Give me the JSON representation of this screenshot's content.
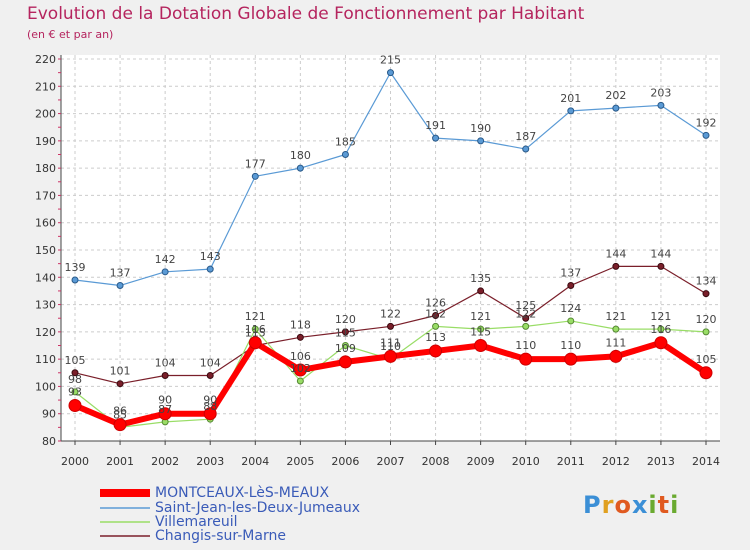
{
  "header": {
    "title": "Evolution de la Dotation Globale de Fonctionnement par Habitant",
    "subtitle": "(en € et par an)"
  },
  "logo": {
    "text": "Proxiti",
    "letters": [
      "P",
      "r",
      "o",
      "x",
      "i",
      "t",
      "i"
    ],
    "colors": [
      "#3b8fd6",
      "#e0a020",
      "#e05a20",
      "#3b8fd6",
      "#6aaa30",
      "#e05a20",
      "#6aaa30"
    ]
  },
  "colors": {
    "background": "#f0f0f0",
    "plot_background": "#ffffff",
    "grid": "#cccccc",
    "accent_title": "#b5245e"
  },
  "chart_data": {
    "type": "line",
    "title": "Evolution de la Dotation Globale de Fonctionnement par Habitant",
    "subtitle": "(en € et par an)",
    "xlabel": "",
    "ylabel": "",
    "x": [
      "2000",
      "2001",
      "2002",
      "2003",
      "2004",
      "2005",
      "2006",
      "2007",
      "2008",
      "2009",
      "2010",
      "2011",
      "2012",
      "2013",
      "2014"
    ],
    "yticks": [
      80,
      90,
      100,
      110,
      120,
      130,
      140,
      150,
      160,
      170,
      180,
      190,
      200,
      210,
      220
    ],
    "ylim": [
      80,
      220
    ],
    "grid": true,
    "legend_position": "bottom-left",
    "series": [
      {
        "name": "MONTCEAUX-LèS-MEAUX",
        "color": "#ff0000",
        "values": [
          93,
          86,
          90,
          90,
          116,
          106,
          109,
          111,
          113,
          115,
          110,
          110,
          111,
          116,
          105
        ],
        "labels": [
          "93",
          "86",
          "90",
          "90",
          "116",
          "106",
          "109",
          "111",
          "113",
          "115",
          "110",
          "110",
          "111",
          "116",
          "105"
        ]
      },
      {
        "name": "Saint-Jean-les-Deux-Jumeaux",
        "color": "#5a9ad5",
        "values": [
          139,
          137,
          142,
          143,
          177,
          180,
          185,
          215,
          191,
          190,
          187,
          201,
          202,
          203,
          192
        ],
        "labels": [
          "139",
          "137",
          "142",
          "143",
          "177",
          "180",
          "185",
          "215",
          "191",
          "190",
          "187",
          "201",
          "202",
          "203",
          "192"
        ]
      },
      {
        "name": "Villemareuil",
        "color": "#99dd66",
        "values": [
          98,
          85,
          87,
          88,
          121,
          102,
          115,
          110,
          122,
          121,
          122,
          124,
          121,
          121,
          120
        ],
        "labels": [
          "98",
          "85",
          "87",
          "88",
          "121",
          "102",
          "115",
          "110",
          "122",
          "121",
          "122",
          "124",
          "121",
          "121",
          "120"
        ]
      },
      {
        "name": "Changis-sur-Marne",
        "color": "#7a1f2a",
        "values": [
          105,
          101,
          104,
          104,
          115,
          118,
          120,
          122,
          126,
          135,
          125,
          137,
          144,
          144,
          134
        ],
        "labels": [
          "105",
          "101",
          "104",
          "104",
          "115",
          "118",
          "120",
          "122",
          "126",
          "135",
          "125",
          "137",
          "144",
          "144",
          "134"
        ]
      }
    ]
  }
}
